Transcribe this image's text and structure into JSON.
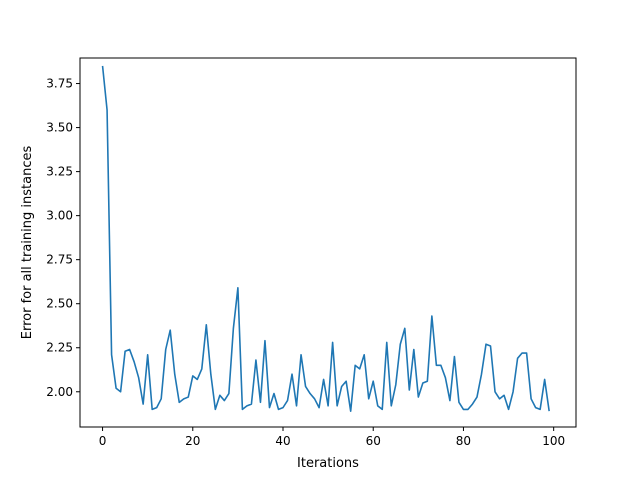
{
  "chart_data": {
    "type": "line",
    "title": "",
    "xlabel": "Iterations",
    "ylabel": "Error for all training instances",
    "xlim": [
      -5,
      104.95
    ],
    "ylim": [
      1.8,
      3.895
    ],
    "xticks": [
      0,
      20,
      40,
      60,
      80,
      100
    ],
    "xtick_labels": [
      "0",
      "20",
      "40",
      "60",
      "80",
      "100"
    ],
    "yticks": [
      2.0,
      2.25,
      2.5,
      2.75,
      3.0,
      3.25,
      3.5,
      3.75
    ],
    "ytick_labels": [
      "2.00",
      "2.25",
      "2.50",
      "2.75",
      "3.00",
      "3.25",
      "3.50",
      "3.75"
    ],
    "grid": false,
    "legend": false,
    "line_color": "#1f77b4",
    "x": [
      0,
      1,
      2,
      3,
      4,
      5,
      6,
      7,
      8,
      9,
      10,
      11,
      12,
      13,
      14,
      15,
      16,
      17,
      18,
      19,
      20,
      21,
      22,
      23,
      24,
      25,
      26,
      27,
      28,
      29,
      30,
      31,
      32,
      33,
      34,
      35,
      36,
      37,
      38,
      39,
      40,
      41,
      42,
      43,
      44,
      45,
      46,
      47,
      48,
      49,
      50,
      51,
      52,
      53,
      54,
      55,
      56,
      57,
      58,
      59,
      60,
      61,
      62,
      63,
      64,
      65,
      66,
      67,
      68,
      69,
      70,
      71,
      72,
      73,
      74,
      75,
      76,
      77,
      78,
      79,
      80,
      81,
      82,
      83,
      84,
      85,
      86,
      87,
      88,
      89,
      90,
      91,
      92,
      93,
      94,
      95,
      96,
      97,
      98,
      99
    ],
    "y": [
      3.85,
      3.6,
      2.21,
      2.02,
      2.0,
      2.23,
      2.24,
      2.17,
      2.08,
      1.93,
      2.21,
      1.9,
      1.91,
      1.96,
      2.24,
      2.35,
      2.1,
      1.94,
      1.96,
      1.97,
      2.09,
      2.07,
      2.13,
      2.38,
      2.1,
      1.9,
      1.98,
      1.95,
      1.99,
      2.36,
      2.59,
      1.9,
      1.92,
      1.93,
      2.18,
      1.94,
      2.29,
      1.91,
      1.99,
      1.9,
      1.91,
      1.95,
      2.1,
      1.92,
      2.21,
      2.03,
      1.99,
      1.96,
      1.91,
      2.07,
      1.92,
      2.28,
      1.92,
      2.03,
      2.06,
      1.89,
      2.15,
      2.13,
      2.21,
      1.96,
      2.06,
      1.92,
      1.9,
      2.28,
      1.92,
      2.04,
      2.27,
      2.36,
      2.01,
      2.24,
      1.97,
      2.05,
      2.06,
      2.43,
      2.15,
      2.15,
      2.08,
      1.95,
      2.2,
      1.94,
      1.9,
      1.9,
      1.93,
      1.97,
      2.1,
      2.27,
      2.26,
      2.0,
      1.96,
      1.98,
      1.9,
      2.0,
      2.19,
      2.22,
      2.22,
      1.96,
      1.91,
      1.9,
      2.07,
      1.89
    ]
  }
}
